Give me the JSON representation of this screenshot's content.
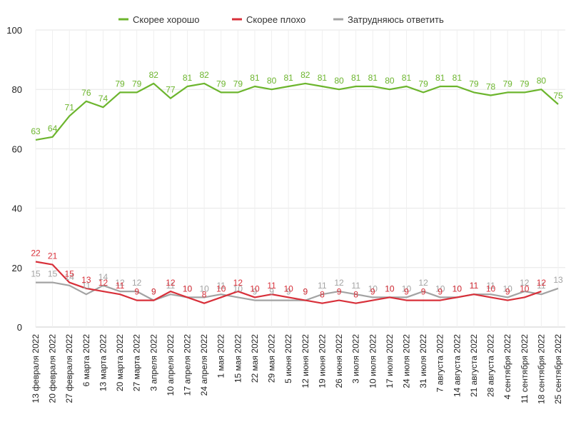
{
  "chart_data": {
    "type": "line",
    "title": "",
    "xlabel": "",
    "ylabel": "",
    "ylim": [
      0,
      100
    ],
    "yticks": [
      0,
      20,
      40,
      60,
      80,
      100
    ],
    "grid": true,
    "legend_position": "top-center",
    "categories": [
      "13 февраля 2022",
      "20 февраля 2022",
      "27 февраля 2022",
      "6 марта 2022",
      "13 марта 2022",
      "20 марта 2022",
      "27 марта 2022",
      "3 апреля 2022",
      "10 апреля 2022",
      "17 апреля 2022",
      "24 апреля 2022",
      "1 мая 2022",
      "15 мая 2022",
      "22 мая 2022",
      "29 мая 2022",
      "5 июня 2022",
      "12 июня 2022",
      "19 июня 2022",
      "26 июня 2022",
      "3 июля 2022",
      "10 июля 2022",
      "17 июля 2022",
      "24 июля 2022",
      "31 июля 2022",
      "7 августа 2022",
      "14 августа 2022",
      "21 августа 2022",
      "28 августа 2022",
      "4 сентября 2022",
      "11 сентября 2022",
      "18 сентября 2022",
      "25 сентября 2022"
    ],
    "series": [
      {
        "name": "Скорее хорошо",
        "color": "#6cb52d",
        "values": [
          63,
          64,
          71,
          76,
          74,
          79,
          79,
          82,
          77,
          81,
          82,
          79,
          79,
          81,
          80,
          81,
          82,
          81,
          80,
          81,
          81,
          80,
          81,
          79,
          81,
          81,
          79,
          78,
          79,
          79,
          80,
          75
        ]
      },
      {
        "name": "Скорее плохо",
        "color": "#d8303a",
        "values": [
          22,
          21,
          15,
          13,
          12,
          11,
          9,
          9,
          12,
          10,
          8,
          10,
          12,
          10,
          11,
          10,
          9,
          8,
          9,
          8,
          9,
          10,
          9,
          9,
          9,
          10,
          11,
          10,
          9,
          10,
          12,
          null
        ]
      },
      {
        "name": "Затрудняюсь ответить",
        "color": "#a3a3a3",
        "values": [
          15,
          15,
          14,
          11,
          14,
          12,
          12,
          9,
          11,
          10,
          10,
          11,
          10,
          9,
          9,
          9,
          9,
          11,
          12,
          11,
          10,
          10,
          10,
          12,
          10,
          10,
          11,
          11,
          10,
          12,
          11,
          13
        ]
      }
    ]
  }
}
